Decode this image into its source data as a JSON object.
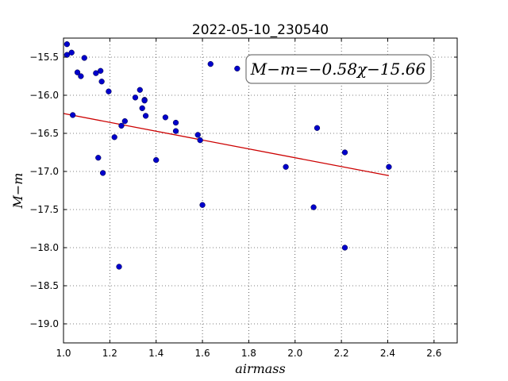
{
  "chart_data": {
    "type": "scatter",
    "title": "2022-05-10_230540",
    "xlabel": "airmass",
    "ylabel": "M−m",
    "xlim": [
      1.0,
      2.7
    ],
    "ylim": [
      -19.25,
      -15.25
    ],
    "y_inverted": true,
    "grid": true,
    "x_ticks": [
      1.0,
      1.2,
      1.4,
      1.6,
      1.8,
      2.0,
      2.2,
      2.4,
      2.6
    ],
    "x_tick_labels": [
      "1.0",
      "1.2",
      "1.4",
      "1.6",
      "1.8",
      "2.0",
      "2.2",
      "2.4",
      "2.6"
    ],
    "y_ticks": [
      -15.5,
      -16.0,
      -16.5,
      -17.0,
      -17.5,
      -18.0,
      -18.5,
      -19.0
    ],
    "y_tick_labels": [
      "−15.5",
      "−16.0",
      "−16.5",
      "−17.0",
      "−17.5",
      "−18.0",
      "−18.5",
      "−19.0"
    ],
    "annotation": "M−m=−0.58χ−15.66",
    "marker_color": "#0000cc",
    "fit_color": "#cc0000",
    "points": [
      {
        "x": 1.015,
        "y": -15.33
      },
      {
        "x": 1.015,
        "y": -15.47
      },
      {
        "x": 1.035,
        "y": -15.44
      },
      {
        "x": 1.04,
        "y": -16.26
      },
      {
        "x": 1.06,
        "y": -15.7
      },
      {
        "x": 1.075,
        "y": -15.75
      },
      {
        "x": 1.09,
        "y": -15.51
      },
      {
        "x": 1.14,
        "y": -15.71
      },
      {
        "x": 1.15,
        "y": -16.82
      },
      {
        "x": 1.16,
        "y": -15.68
      },
      {
        "x": 1.165,
        "y": -15.82
      },
      {
        "x": 1.17,
        "y": -17.02
      },
      {
        "x": 1.195,
        "y": -15.95
      },
      {
        "x": 1.22,
        "y": -16.55
      },
      {
        "x": 1.24,
        "y": -18.25
      },
      {
        "x": 1.25,
        "y": -16.4
      },
      {
        "x": 1.265,
        "y": -16.34
      },
      {
        "x": 1.31,
        "y": -16.03
      },
      {
        "x": 1.33,
        "y": -15.93
      },
      {
        "x": 1.34,
        "y": -16.17
      },
      {
        "x": 1.35,
        "y": -16.06
      },
      {
        "x": 1.35,
        "y": -16.07
      },
      {
        "x": 1.355,
        "y": -16.27
      },
      {
        "x": 1.4,
        "y": -16.85
      },
      {
        "x": 1.44,
        "y": -16.29
      },
      {
        "x": 1.485,
        "y": -16.36
      },
      {
        "x": 1.485,
        "y": -16.47
      },
      {
        "x": 1.58,
        "y": -16.52
      },
      {
        "x": 1.59,
        "y": -16.59
      },
      {
        "x": 1.6,
        "y": -17.44
      },
      {
        "x": 1.635,
        "y": -15.59
      },
      {
        "x": 1.75,
        "y": -15.65
      },
      {
        "x": 1.96,
        "y": -16.94
      },
      {
        "x": 2.08,
        "y": -17.47
      },
      {
        "x": 2.095,
        "y": -16.43
      },
      {
        "x": 2.215,
        "y": -16.75
      },
      {
        "x": 2.215,
        "y": -18.0
      },
      {
        "x": 2.405,
        "y": -16.94
      }
    ],
    "fit": {
      "slope": -0.58,
      "intercept": -15.66,
      "x_start": 1.0,
      "x_end": 2.405
    }
  }
}
